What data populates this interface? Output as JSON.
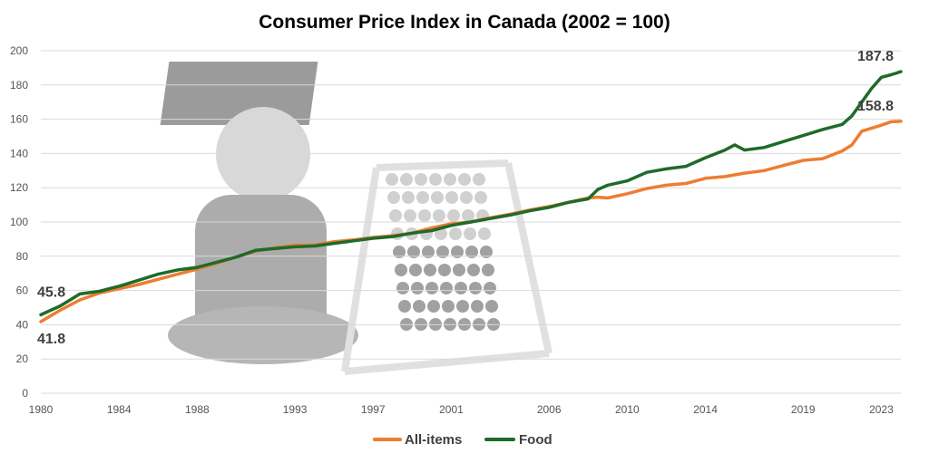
{
  "chart_data": {
    "type": "line",
    "title": "Consumer Price Index in Canada (2002 = 100)",
    "xlabel": "",
    "ylabel": "",
    "xlim": [
      1980,
      2024
    ],
    "ylim": [
      0,
      200
    ],
    "y_ticks": [
      0,
      20,
      40,
      60,
      80,
      100,
      120,
      140,
      160,
      180,
      200
    ],
    "x_ticks": [
      1980,
      1984,
      1988,
      1993,
      1997,
      2001,
      2006,
      2010,
      2014,
      2019,
      2023
    ],
    "grid": true,
    "legend_position": "bottom",
    "series": [
      {
        "name": "All-items",
        "color": "#ed7d31",
        "x": [
          1980,
          1981,
          1982,
          1983,
          1984,
          1985,
          1986,
          1987,
          1988,
          1989,
          1990,
          1991,
          1992,
          1993,
          1994,
          1995,
          1996,
          1997,
          1998,
          1999,
          2000,
          2001,
          2002,
          2003,
          2004,
          2005,
          2006,
          2007,
          2008,
          2008.5,
          2009,
          2010,
          2011,
          2012,
          2013,
          2014,
          2015,
          2016,
          2017,
          2018,
          2019,
          2020,
          2021,
          2021.5,
          2022,
          2023,
          2023.5,
          2024
        ],
        "values": [
          41.8,
          48.5,
          54.5,
          58.5,
          61.0,
          63.5,
          66.5,
          69.5,
          72.5,
          76.0,
          79.5,
          83.0,
          85.0,
          86.5,
          86.5,
          88.5,
          89.5,
          91.0,
          92.0,
          93.5,
          96.5,
          99.0,
          100.0,
          102.5,
          104.5,
          107.0,
          109.0,
          111.5,
          114.0,
          114.5,
          114.0,
          116.5,
          119.5,
          121.5,
          122.5,
          125.5,
          126.5,
          128.5,
          130.0,
          133.0,
          136.0,
          137.0,
          141.5,
          145.0,
          153.0,
          156.5,
          158.5,
          158.8
        ]
      },
      {
        "name": "Food",
        "color": "#1e6b2a",
        "x": [
          1980,
          1981,
          1982,
          1983,
          1984,
          1985,
          1986,
          1987,
          1988,
          1989,
          1990,
          1991,
          1992,
          1993,
          1994,
          1995,
          1996,
          1997,
          1998,
          1999,
          2000,
          2001,
          2002,
          2003,
          2004,
          2005,
          2006,
          2007,
          2008,
          2008.5,
          2009,
          2010,
          2011,
          2012,
          2013,
          2014,
          2015,
          2015.5,
          2016,
          2017,
          2018,
          2019,
          2020,
          2021,
          2021.5,
          2022,
          2022.5,
          2023,
          2023.5,
          2024
        ],
        "values": [
          45.8,
          51.0,
          58.0,
          59.5,
          62.5,
          66.0,
          69.5,
          72.0,
          73.5,
          76.5,
          79.5,
          83.5,
          84.5,
          85.5,
          86.0,
          87.5,
          89.0,
          90.5,
          91.5,
          93.5,
          95.0,
          98.0,
          100.0,
          102.0,
          104.0,
          106.5,
          108.5,
          111.5,
          113.5,
          119.0,
          121.5,
          124.0,
          129.0,
          131.0,
          132.5,
          137.5,
          142.0,
          145.0,
          142.0,
          143.5,
          147.0,
          150.5,
          154.0,
          157.0,
          162.0,
          170.0,
          178.0,
          184.5,
          186.0,
          187.8
        ]
      }
    ],
    "annotations": [
      {
        "series": "Food",
        "text": "45.8",
        "at": "start"
      },
      {
        "series": "All-items",
        "text": "41.8",
        "at": "start"
      },
      {
        "series": "Food",
        "text": "187.8",
        "at": "end"
      },
      {
        "series": "All-items",
        "text": "158.8",
        "at": "end"
      }
    ]
  }
}
